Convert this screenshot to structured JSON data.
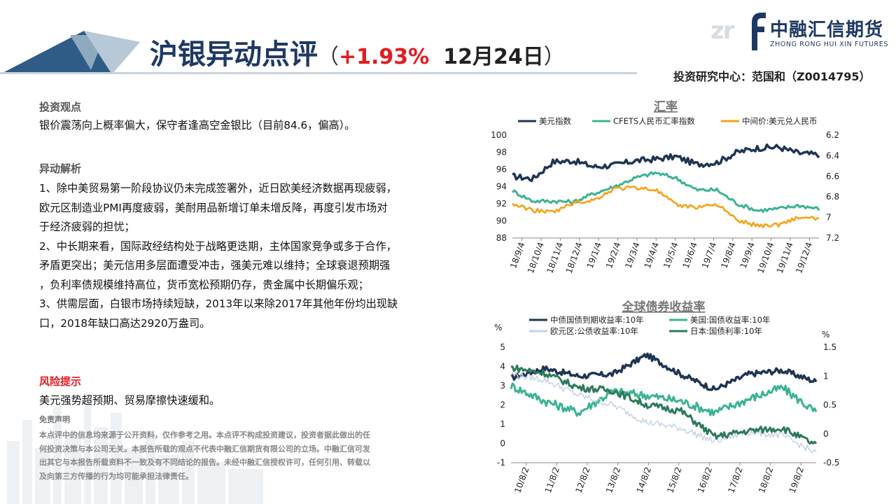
{
  "header": {
    "title_part1": "沪银",
    "title_part2": "异动点评",
    "paren_open": "（",
    "change": "+1.93%",
    "date": "12月24日",
    "paren_close": "）",
    "analyst": "投资研究中心：范国和（Z0014795）",
    "logo_name": "中融汇信期货",
    "logo_sub": "ZHONG RONG HUI XIN FUTURES",
    "logo_mark": "zr"
  },
  "content": {
    "view_heading": "投资观点",
    "view_text": "银价震荡向上概率偏大，保守者逢高空金银比（目前84.6，偏高）。",
    "analysis_heading": "异动解析",
    "analysis_lines": [
      "1、除中美贸易第一阶段协议仍未完成签署外，近日欧美经济数据再现疲弱，",
      "欧元区制造业PMI再度疲弱，美耐用品新增订单未增反降，再度引发市场对",
      "于经济疲弱的担忧；",
      "2、中长期来看，国际政经结构处于战略更迭期，主体国家竞争或多于合作，",
      "矛盾更突出；美元信用多层面遭受冲击，强美元难以维持；全球衰退预期强",
      "，负利率债规模维持高位，货币宽松预期仍存，贵金属中长期偏乐观；",
      "3、供需层面，白银市场持续短缺，2013年以来除2017年其他年份均出现缺",
      "口，2018年缺口高达2920万盎司。"
    ],
    "risk_heading": "风险提示",
    "risk_text": "美元强势超预期、贸易摩擦快速缓和。",
    "disclaimer_heading": "免责声明",
    "disclaimer_lines": [
      "本点评中的信息均来源于公开资料，仅作参考之用。本点评不构成投资建议，投资者据此做出的任",
      "何投资决策与本公司无关。本报告所载的观点不代表中融汇信期货有限公司的立场。中融汇信可发",
      "出其它与本报告所载资料不一致及有不同结论的报告。未经中融汇信授权许可，任何引用、转载以",
      "及向第三方传播的行为均可能承担法律责任。"
    ]
  },
  "chart_data": [
    {
      "type": "line",
      "title": "汇率",
      "legend_placement": "top",
      "x": [
        "18/9/4",
        "18/10/4",
        "18/11/4",
        "18/12/4",
        "19/1/4",
        "19/2/4",
        "19/3/4",
        "19/4/4",
        "19/5/4",
        "19/6/4",
        "19/7/4",
        "19/8/4",
        "19/9/4",
        "19/10/4",
        "19/11/4",
        "19/12/4"
      ],
      "ylim_left": [
        88,
        100
      ],
      "yticks_left": [
        88,
        90,
        92,
        94,
        96,
        98,
        100
      ],
      "ylim_right": [
        7.2,
        6.2
      ],
      "yticks_right": [
        6.2,
        6.4,
        6.6,
        6.8,
        7.0,
        7.2
      ],
      "right_axis_inverted": true,
      "series": [
        {
          "name": "美元指数",
          "axis": "left",
          "color": "#1f3553",
          "values": [
            95.2,
            94.9,
            96.9,
            97.0,
            96.3,
            96.5,
            97.0,
            97.2,
            97.5,
            96.6,
            96.8,
            98.0,
            98.5,
            98.6,
            97.9,
            97.7
          ]
        },
        {
          "name": "CFETS人民币汇率指数",
          "axis": "left",
          "color": "#3cb394",
          "values": [
            93.5,
            92.3,
            92.3,
            92.2,
            93.2,
            94.0,
            95.0,
            95.6,
            95.0,
            93.6,
            93.6,
            92.0,
            91.2,
            91.4,
            91.8,
            91.4
          ]
        },
        {
          "name": "中间价:美元兑人民币",
          "axis": "right",
          "color": "#f5a31a",
          "values": [
            6.87,
            6.93,
            6.95,
            6.86,
            6.83,
            6.72,
            6.71,
            6.73,
            6.88,
            6.9,
            6.87,
            7.03,
            7.08,
            7.07,
            7.0,
            7.02
          ]
        }
      ]
    },
    {
      "type": "line",
      "title": "全球债券收益率",
      "legend_placement": "top",
      "x": [
        "10/8/2",
        "11/8/2",
        "12/8/2",
        "13/8/2",
        "14/8/2",
        "15/8/2",
        "16/8/2",
        "17/8/2",
        "18/8/2",
        "19/8/2"
      ],
      "ylabel_left": "%",
      "ylabel_right": "%",
      "ylim_left": [
        -1,
        5
      ],
      "yticks_left": [
        -1,
        0,
        1,
        2,
        3,
        4,
        5
      ],
      "ylim_right": [
        -0.5,
        1.5
      ],
      "yticks_right": [
        -0.5,
        0,
        0.5,
        1,
        1.5
      ],
      "series": [
        {
          "name": "中债国债到期收益率:10年",
          "axis": "left",
          "color": "#1f3553",
          "values": [
            3.4,
            3.9,
            3.5,
            3.6,
            4.6,
            3.6,
            2.8,
            3.6,
            3.8,
            3.2
          ]
        },
        {
          "name": "美国:国债收益率:10年",
          "axis": "left",
          "color": "#3cb394",
          "values": [
            3.0,
            2.2,
            1.6,
            2.7,
            2.5,
            2.2,
            1.6,
            2.3,
            2.9,
            1.6
          ]
        },
        {
          "name": "欧元区:公债收益率:10年",
          "axis": "left",
          "color": "#c5d3e6",
          "values": [
            3.6,
            3.3,
            2.5,
            2.0,
            1.1,
            0.8,
            0.1,
            0.6,
            0.4,
            -0.5
          ]
        },
        {
          "name": "日本:国债利率:10年",
          "axis": "right",
          "color": "#2d7a5a",
          "values": [
            1.15,
            1.05,
            0.8,
            0.75,
            0.5,
            0.4,
            -0.05,
            0.05,
            0.1,
            -0.2
          ]
        }
      ]
    }
  ]
}
